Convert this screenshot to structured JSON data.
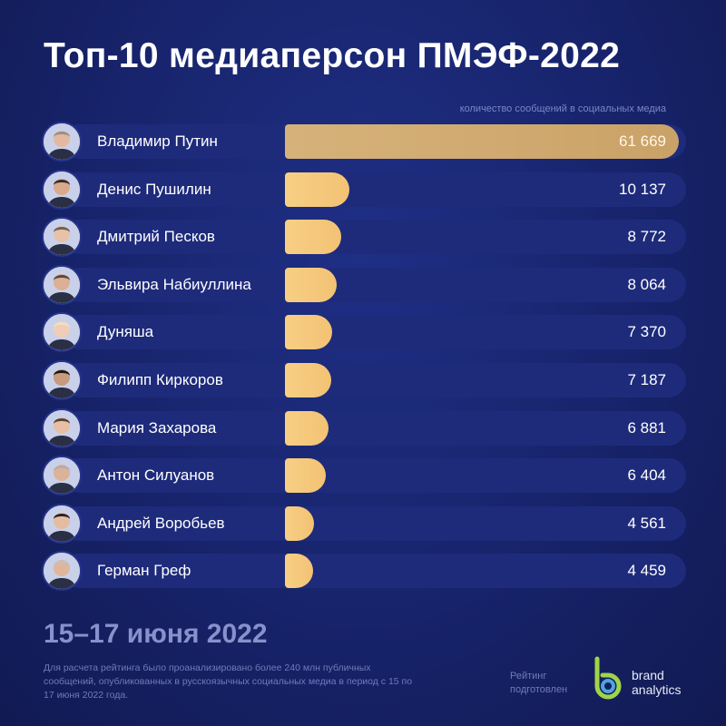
{
  "header": {
    "title": "Топ-10 медиаперсон ПМЭФ-2022",
    "subtitle": "количество сообщений в социальных медиа"
  },
  "chart_data": {
    "type": "bar",
    "title": "Топ-10 медиаперсон ПМЭФ-2022",
    "subtitle": "количество сообщений в социальных медиа",
    "categories": [
      "Владимир Путин",
      "Денис Пушилин",
      "Дмитрий Песков",
      "Эльвира Набиуллина",
      "Дуняша",
      "Филипп Киркоров",
      "Мария Захарова",
      "Антон Силуанов",
      "Андрей Воробьев",
      "Герман Греф"
    ],
    "values": [
      61669,
      10137,
      8772,
      8064,
      7370,
      7187,
      6881,
      6404,
      4561,
      4459
    ],
    "value_labels": [
      "61 669",
      "10 137",
      "8 772",
      "8 064",
      "7 370",
      "7 187",
      "6 881",
      "6 404",
      "4 561",
      "4 459"
    ],
    "orientation": "horizontal",
    "xlim": [
      0,
      61669
    ],
    "grid": false,
    "legend": "none"
  },
  "footer": {
    "date": "15–17 июня 2022",
    "note": "Для расчета рейтинга было проанализировано более 240 млн публичных сообщений, опубликованных в русскоязычных социальных медиа в период с 15 по 17 июня 2022 года.",
    "prepared_by": "Рейтинг подготовлен",
    "brand_line1": "brand",
    "brand_line2": "analytics"
  },
  "colors": {
    "background": "#17236a",
    "row": "#1e2b7b",
    "bar": "#f5c97c",
    "bar_top": "#d2ad74",
    "logo_green": "#9fd44a",
    "logo_blue": "#4fa3e0"
  }
}
